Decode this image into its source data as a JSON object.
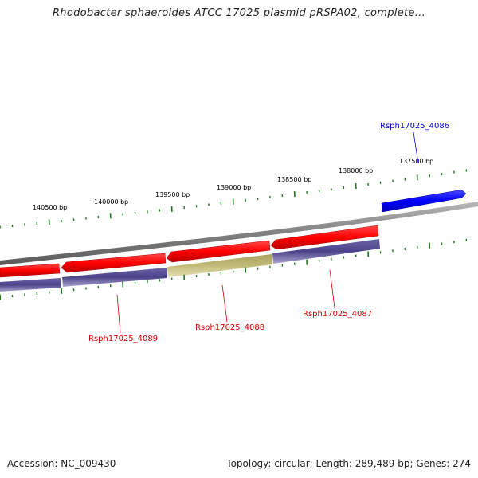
{
  "title": "Rhodobacter sphaeroides ATCC 17025 plasmid pRSPA02, complete...",
  "footer": {
    "accession": "Accession: NC_009430",
    "summary": "Topology: circular; Length: 289,489 bp; Genes: 274"
  },
  "ticks": {
    "labels": [
      "137500 bp",
      "138000 bp",
      "138500 bp",
      "139000 bp",
      "139500 bp",
      "140000 bp",
      "140500 bp"
    ]
  },
  "genes": [
    {
      "name": "Rsph17025_4086",
      "strand": "+",
      "color": "#0000ff"
    },
    {
      "name": "Rsph17025_4087",
      "strand": "-",
      "color": "#ff0000"
    },
    {
      "name": "Rsph17025_4088",
      "strand": "-",
      "color": "#ff0000"
    },
    {
      "name": "Rsph17025_4089",
      "strand": "-",
      "color": "#ff0000"
    }
  ],
  "colors": {
    "backbone": "#808080",
    "tick": "#1a7a1a",
    "forward_gene": "#0000ff",
    "reverse_gene": "#ff0000",
    "cds_track": "#4b4389",
    "cds_highlight": "#c2bb77",
    "label_forward": "#0000cc",
    "label_reverse": "#cc0000"
  }
}
